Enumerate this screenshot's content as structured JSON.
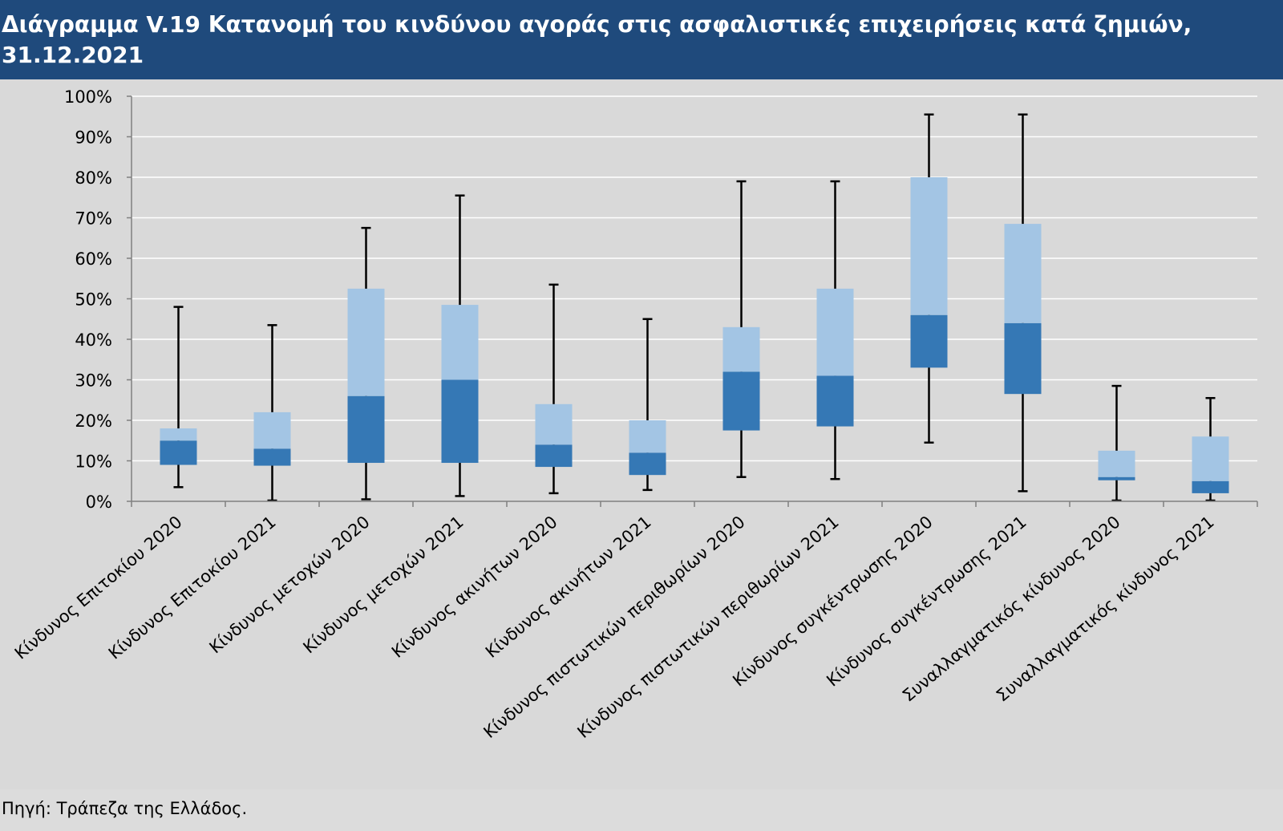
{
  "header": {
    "title_line1": "Διάγραμμα V.19 Κατανομή του κινδύνου αγοράς στις ασφαλιστικές επιχειρήσεις κατά ζημιών,",
    "title_line2": "31.12.2021"
  },
  "footer": {
    "source": "Πηγή: Τράπεζα της Ελλάδος."
  },
  "colors": {
    "header_bg": "#1f4a7c",
    "background": "#d9d9d9",
    "box_upper": "#a3c5e4",
    "box_lower": "#3578b5",
    "whisker": "#000000",
    "gridline": "#ffffff"
  },
  "chart_data": {
    "type": "boxplot",
    "title": "",
    "xlabel": "",
    "ylabel": "",
    "ylim": [
      0,
      100
    ],
    "yunit": "%",
    "yticks": [
      "0%",
      "10%",
      "20%",
      "30%",
      "40%",
      "50%",
      "60%",
      "70%",
      "80%",
      "90%",
      "100%"
    ],
    "grid": true,
    "categories": [
      "Κίνδυνος Επιτοκίου 2020",
      "Κίνδυνος Επιτοκίου 2021",
      "Κίνδυνος μετοχών 2020",
      "Κίνδυνος μετοχών 2021",
      "Κίνδυνος ακινήτων 2020",
      "Κίνδυνος ακινήτων 2021",
      "Κίνδυνος πιστωτικών περιθωρίων 2020",
      "Κίνδυνος πιστωτικών περιθωρίων 2021",
      "Κίνδυνος συγκέντρωσης 2020",
      "Κίνδυνος συγκέντρωσης 2021",
      "Συναλλαγματικός κίνδυνος 2020",
      "Συναλλαγματικός κίνδυνος 2021"
    ],
    "min": [
      3.5,
      0.2,
      0.5,
      1.3,
      2.0,
      2.8,
      6.0,
      5.5,
      14.5,
      2.5,
      0.2,
      0.2
    ],
    "q1": [
      9.0,
      8.8,
      9.5,
      9.5,
      8.5,
      6.5,
      17.5,
      18.5,
      33.0,
      26.5,
      5.2,
      2.0
    ],
    "median": [
      15.0,
      13.0,
      26.0,
      30.0,
      14.0,
      12.0,
      32.0,
      31.0,
      46.0,
      44.0,
      6.0,
      5.0
    ],
    "q3": [
      18.0,
      22.0,
      52.5,
      48.5,
      24.0,
      20.0,
      43.0,
      52.5,
      80.0,
      68.5,
      12.5,
      16.0
    ],
    "max": [
      48.0,
      43.5,
      67.5,
      75.5,
      53.5,
      45.0,
      79.0,
      79.0,
      95.5,
      95.5,
      28.5,
      25.5
    ]
  }
}
